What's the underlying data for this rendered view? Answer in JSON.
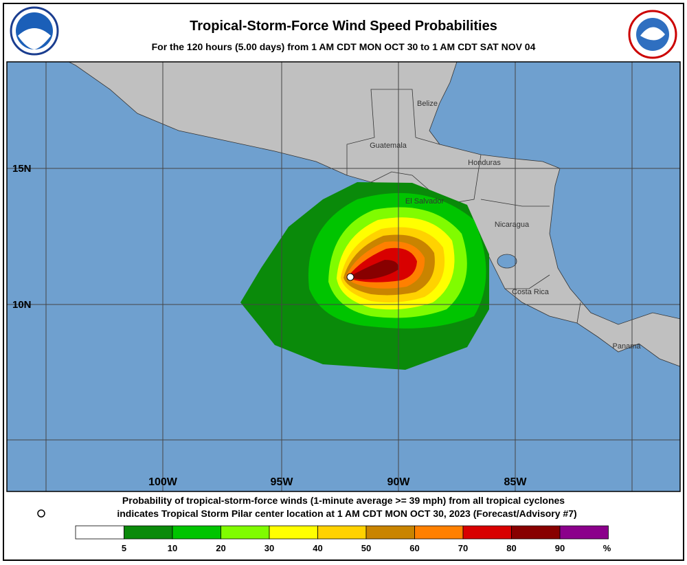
{
  "header": {
    "title": "Tropical-Storm-Force Wind Speed Probabilities",
    "subtitle": "For the 120 hours (5.00 days) from 1 AM CDT MON OCT 30 to 1 AM CDT SAT NOV 04"
  },
  "map": {
    "countries": [
      "Belize",
      "Guatemala",
      "Honduras",
      "El Salvador",
      "Nicaragua",
      "Costa Rica",
      "Panama"
    ],
    "lat_labels": [
      "15N",
      "10N"
    ],
    "lon_labels": [
      "100W",
      "95W",
      "90W",
      "85W"
    ]
  },
  "footer": {
    "line1": "Probability of tropical-storm-force winds (1-minute average >= 39 mph) from all tropical cyclones",
    "line2": "indicates Tropical Storm Pilar center location at 1 AM CDT MON OCT 30, 2023 (Forecast/Advisory #7)"
  },
  "legend": {
    "colors": [
      "#ffffff",
      "#0a8a0a",
      "#00c400",
      "#80fc00",
      "#ffff00",
      "#ffd200",
      "#c98400",
      "#ff8000",
      "#d80000",
      "#880000",
      "#8b008b"
    ],
    "labels": [
      5,
      10,
      20,
      30,
      40,
      50,
      60,
      70,
      80,
      90
    ],
    "unit": "%"
  }
}
